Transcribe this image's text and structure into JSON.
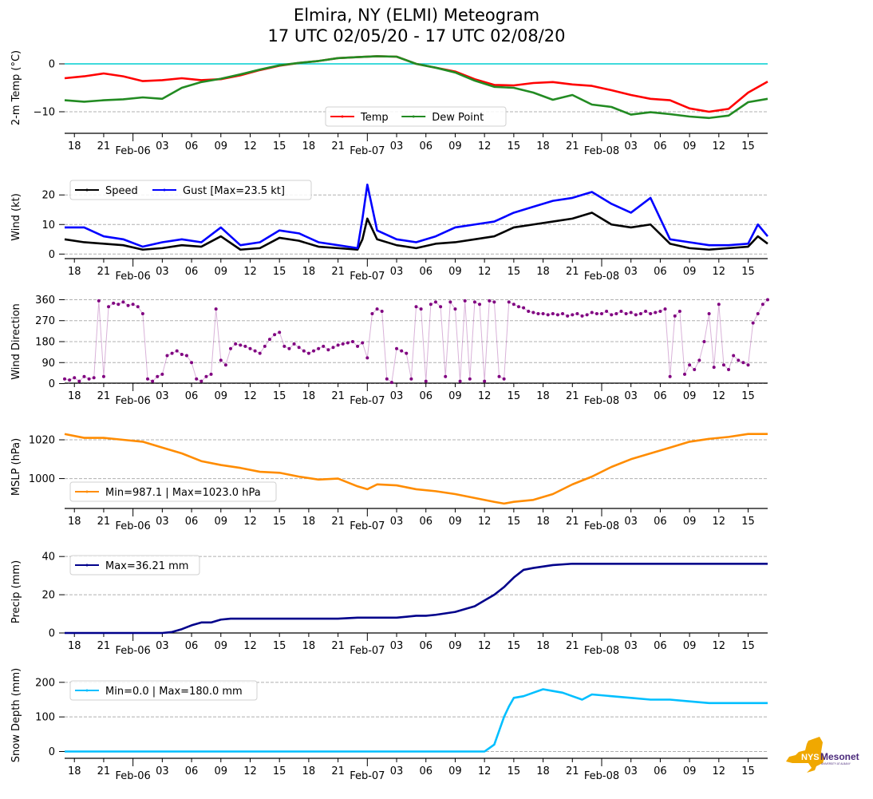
{
  "title": {
    "line1": "Elmira, NY (ELMI) Meteogram",
    "line2": "17 UTC 02/05/20 - 17 UTC 02/08/20"
  },
  "logo": {
    "text_main": "NYS",
    "text_brand": "Mesonet",
    "text_sub": "UNIVERSITY AT ALBANY",
    "state_color": "#f0a800",
    "brand_color": "#4b2a7b"
  },
  "x_axis": {
    "start_hour": 17,
    "span_hours": 72,
    "hour_ticks": [
      "18",
      "21",
      "03",
      "06",
      "09",
      "12",
      "15",
      "18",
      "21",
      "03",
      "06",
      "09",
      "12",
      "15",
      "18",
      "21",
      "03",
      "06",
      "09",
      "12",
      "15"
    ],
    "hour_tick_offsets_h": [
      1,
      4,
      10,
      13,
      16,
      19,
      22,
      25,
      28,
      34,
      37,
      40,
      43,
      46,
      49,
      52,
      58,
      61,
      64,
      67,
      70
    ],
    "date_ticks": [
      "Feb-06",
      "Feb-07",
      "Feb-08"
    ],
    "date_tick_offsets_h": [
      7,
      31,
      55
    ]
  },
  "chart_data": [
    {
      "type": "line",
      "id": "temp",
      "ylabel": "2-m Temp ($^\\circ$C)",
      "ylabel_display": "2-m Temp (°C)",
      "ylim": [
        -13,
        3
      ],
      "yticks": [
        0,
        -10
      ],
      "grid": "horizontal-dashed",
      "freezing_line": 0,
      "freezing_color": "#00ced1",
      "legend": "bottom-center",
      "series": [
        {
          "name": "Temp",
          "color": "#ff0000",
          "x": [
            0,
            2,
            4,
            6,
            8,
            10,
            12,
            14,
            16,
            18,
            20,
            22,
            24,
            26,
            28,
            30,
            32,
            34,
            36,
            38,
            40,
            42,
            44,
            46,
            48,
            50,
            52,
            54,
            56,
            58,
            60,
            62,
            64,
            66,
            68,
            70,
            72
          ],
          "values": [
            -3,
            -2.6,
            -2,
            -2.6,
            -3.6,
            -3.4,
            -3,
            -3.4,
            -3.2,
            -2.4,
            -1.3,
            -0.4,
            0.2,
            0.6,
            1.2,
            1.4,
            1.6,
            1.5,
            0,
            -0.8,
            -1.6,
            -3.2,
            -4.4,
            -4.5,
            -4,
            -3.8,
            -4.3,
            -4.6,
            -5.5,
            -6.5,
            -7.3,
            -7.6,
            -9.3,
            -10,
            -9.4,
            -6,
            -3.7
          ]
        },
        {
          "name": "Dew Point",
          "color": "#228b22",
          "x": [
            0,
            2,
            4,
            6,
            8,
            10,
            12,
            14,
            16,
            18,
            20,
            22,
            24,
            26,
            28,
            30,
            32,
            34,
            36,
            38,
            40,
            42,
            44,
            46,
            48,
            50,
            52,
            54,
            56,
            58,
            60,
            62,
            64,
            66,
            68,
            70,
            72
          ],
          "values": [
            -7.6,
            -7.9,
            -7.6,
            -7.4,
            -7,
            -7.3,
            -5,
            -3.8,
            -3.1,
            -2.2,
            -1.2,
            -0.3,
            0.2,
            0.6,
            1.2,
            1.4,
            1.6,
            1.5,
            0,
            -0.8,
            -1.8,
            -3.5,
            -4.8,
            -5,
            -6,
            -7.5,
            -6.5,
            -8.5,
            -9,
            -10.6,
            -10.1,
            -10.5,
            -11,
            -11.3,
            -10.8,
            -8,
            -7.3
          ]
        }
      ]
    },
    {
      "type": "line",
      "id": "wind",
      "ylabel": "Wind (kt)",
      "ylim": [
        -1,
        26
      ],
      "yticks": [
        0,
        10,
        20
      ],
      "grid": "horizontal-dashed",
      "legend": "top-left",
      "series": [
        {
          "name": "Speed",
          "color": "#000000",
          "x": [
            0,
            2,
            4,
            6,
            8,
            10,
            12,
            14,
            16,
            18,
            20,
            22,
            24,
            26,
            28,
            30,
            30.5,
            31,
            32,
            34,
            36,
            38,
            40,
            42,
            44,
            46,
            48,
            50,
            52,
            54,
            56,
            58,
            60,
            62,
            64,
            66,
            68,
            70,
            71,
            72
          ],
          "values": [
            5,
            4,
            3.5,
            3,
            1.5,
            2,
            3,
            2.5,
            6,
            1.5,
            2,
            5.5,
            4.5,
            2.5,
            2,
            1.5,
            5,
            12,
            5,
            3,
            2,
            3.5,
            4,
            5,
            6,
            9,
            10,
            11,
            12,
            14,
            10,
            9,
            10,
            3.5,
            2,
            1.5,
            2,
            2.5,
            6,
            3.5
          ]
        },
        {
          "name": "Gust [Max=23.5 kt]",
          "color": "#0000ff",
          "max": 23.5,
          "x": [
            0,
            2,
            4,
            6,
            8,
            10,
            12,
            14,
            16,
            18,
            20,
            22,
            24,
            26,
            28,
            30,
            30.5,
            31,
            32,
            34,
            36,
            38,
            40,
            42,
            44,
            46,
            48,
            50,
            52,
            54,
            56,
            58,
            60,
            62,
            64,
            66,
            68,
            70,
            71,
            72
          ],
          "values": [
            9,
            9,
            6,
            5,
            2.5,
            4,
            5,
            4,
            9,
            3,
            4,
            8,
            7,
            4,
            3,
            2,
            12,
            23.5,
            8,
            5,
            4,
            6,
            9,
            10,
            11,
            14,
            16,
            18,
            19,
            21,
            17,
            14,
            19,
            5,
            4,
            3,
            3,
            3.5,
            10,
            6
          ]
        }
      ]
    },
    {
      "type": "scatter",
      "id": "wdir",
      "ylabel": "Wind Direction",
      "ylim": [
        -5,
        365
      ],
      "yticks": [
        0,
        90,
        180,
        270,
        360
      ],
      "grid": "horizontal-dashed",
      "color": "#800080",
      "x": [
        0,
        0.5,
        1,
        1.5,
        2,
        2.5,
        3,
        3.5,
        4,
        4.5,
        5,
        5.5,
        6,
        6.5,
        7,
        7.5,
        8,
        8.5,
        9,
        9.5,
        10,
        10.5,
        11,
        11.5,
        12,
        12.5,
        13,
        13.5,
        14,
        14.5,
        15,
        15.5,
        16,
        16.5,
        17,
        17.5,
        18,
        18.5,
        19,
        19.5,
        20,
        20.5,
        21,
        21.5,
        22,
        22.5,
        23,
        23.5,
        24,
        24.5,
        25,
        25.5,
        26,
        26.5,
        27,
        27.5,
        28,
        28.5,
        29,
        29.5,
        30,
        30.5,
        31,
        31.5,
        32,
        32.5,
        33,
        33.5,
        34,
        34.5,
        35,
        35.5,
        36,
        36.5,
        37,
        37.5,
        38,
        38.5,
        39,
        39.5,
        40,
        40.5,
        41,
        41.5,
        42,
        42.5,
        43,
        43.5,
        44,
        44.5,
        45,
        45.5,
        46,
        46.5,
        47,
        47.5,
        48,
        48.5,
        49,
        49.5,
        50,
        50.5,
        51,
        51.5,
        52,
        52.5,
        53,
        53.5,
        54,
        54.5,
        55,
        55.5,
        56,
        56.5,
        57,
        57.5,
        58,
        58.5,
        59,
        59.5,
        60,
        60.5,
        61,
        61.5,
        62,
        62.5,
        63,
        63.5,
        64,
        64.5,
        65,
        65.5,
        66,
        66.5,
        67,
        67.5,
        68,
        68.5,
        69,
        69.5,
        70,
        70.5,
        71,
        71.5,
        72
      ],
      "values": [
        20,
        15,
        25,
        10,
        30,
        20,
        25,
        355,
        30,
        330,
        345,
        340,
        350,
        335,
        340,
        330,
        300,
        20,
        10,
        30,
        40,
        120,
        130,
        140,
        125,
        120,
        90,
        20,
        10,
        30,
        40,
        320,
        100,
        80,
        150,
        170,
        165,
        160,
        150,
        140,
        130,
        160,
        190,
        210,
        220,
        160,
        150,
        170,
        155,
        140,
        130,
        140,
        150,
        160,
        145,
        155,
        165,
        170,
        175,
        180,
        160,
        175,
        110,
        300,
        320,
        310,
        20,
        5,
        150,
        140,
        130,
        20,
        330,
        320,
        10,
        340,
        350,
        330,
        30,
        350,
        320,
        10,
        355,
        20,
        350,
        340,
        10,
        355,
        350,
        30,
        20,
        350,
        340,
        330,
        325,
        310,
        305,
        300,
        300,
        295,
        300,
        295,
        300,
        290,
        295,
        300,
        290,
        295,
        305,
        300,
        300,
        310,
        295,
        300,
        310,
        300,
        305,
        295,
        300,
        310,
        300,
        305,
        310,
        320,
        30,
        290,
        310,
        40,
        80,
        60,
        100,
        180,
        300,
        70,
        340,
        80,
        60,
        120,
        100,
        90,
        80,
        260,
        300,
        340,
        360
      ]
    },
    {
      "type": "line",
      "id": "mslp",
      "ylabel": "MSLP (hPa)",
      "ylim": [
        985,
        1027
      ],
      "yticks": [
        1000,
        1020
      ],
      "grid": "horizontal-dashed",
      "legend": "bottom-left",
      "series": [
        {
          "name": "Min=987.1 | Max=1023.0 hPa",
          "color": "#ff8c00",
          "min": 987.1,
          "max": 1023.0,
          "x": [
            0,
            2,
            4,
            6,
            8,
            10,
            12,
            14,
            16,
            18,
            20,
            22,
            24,
            26,
            28,
            30,
            31,
            32,
            34,
            36,
            38,
            40,
            42,
            44,
            45,
            46,
            48,
            50,
            52,
            54,
            56,
            58,
            60,
            62,
            64,
            66,
            68,
            70,
            72
          ],
          "values": [
            1023,
            1021,
            1021,
            1020,
            1019,
            1016,
            1013,
            1009,
            1007,
            1005.5,
            1003.5,
            1003,
            1001,
            999.5,
            1000,
            996,
            994.5,
            997,
            996.5,
            994.5,
            993.5,
            992,
            990,
            988,
            987.1,
            988,
            989,
            992,
            997,
            1001,
            1006,
            1010,
            1013,
            1016,
            1019,
            1020.5,
            1021.5,
            1023,
            1023
          ]
        }
      ]
    },
    {
      "type": "line",
      "id": "precip",
      "ylabel": "Precip (mm)",
      "ylim": [
        0,
        43
      ],
      "yticks": [
        0,
        20,
        40
      ],
      "grid": "horizontal-dashed",
      "legend": "top-left",
      "series": [
        {
          "name": "Max=36.21 mm",
          "color": "#00008b",
          "max": 36.21,
          "x": [
            0,
            2,
            4,
            6,
            8,
            10,
            11,
            12,
            13,
            14,
            15,
            16,
            17,
            18,
            20,
            22,
            24,
            26,
            28,
            30,
            32,
            34,
            36,
            37,
            38,
            40,
            42,
            43,
            44,
            45,
            46,
            47,
            48,
            50,
            52,
            54,
            56,
            58,
            60,
            62,
            64,
            66,
            68,
            70,
            72
          ],
          "values": [
            0,
            0,
            0,
            0,
            0,
            0,
            0.5,
            2,
            4,
            5.5,
            5.5,
            7,
            7.5,
            7.5,
            7.5,
            7.5,
            7.5,
            7.5,
            7.5,
            8,
            8,
            8,
            9,
            9,
            9.5,
            11,
            14,
            17,
            20,
            24,
            29,
            33,
            34,
            35.5,
            36.21,
            36.21,
            36.21,
            36.21,
            36.21,
            36.21,
            36.21,
            36.21,
            36.21,
            36.21,
            36.21
          ]
        }
      ]
    },
    {
      "type": "line",
      "id": "snow",
      "ylabel": "Snow Depth (mm)",
      "ylim": [
        -15,
        225
      ],
      "yticks": [
        0,
        100,
        200
      ],
      "grid": "horizontal-dashed",
      "legend": "top-left",
      "series": [
        {
          "name": "Min=0.0 | Max=180.0 mm",
          "color": "#00bfff",
          "min": 0.0,
          "max": 180.0,
          "x": [
            0,
            10,
            20,
            30,
            40,
            43,
            43.5,
            44,
            44.5,
            45,
            45.5,
            46,
            47,
            48,
            49,
            50,
            51,
            52,
            53,
            54,
            56,
            58,
            60,
            62,
            64,
            66,
            68,
            70,
            72
          ],
          "values": [
            0,
            0,
            0,
            0,
            0,
            0,
            10,
            20,
            60,
            100,
            130,
            155,
            160,
            170,
            180,
            175,
            170,
            160,
            150,
            165,
            160,
            155,
            150,
            150,
            145,
            140,
            140,
            140,
            140
          ]
        }
      ]
    }
  ]
}
